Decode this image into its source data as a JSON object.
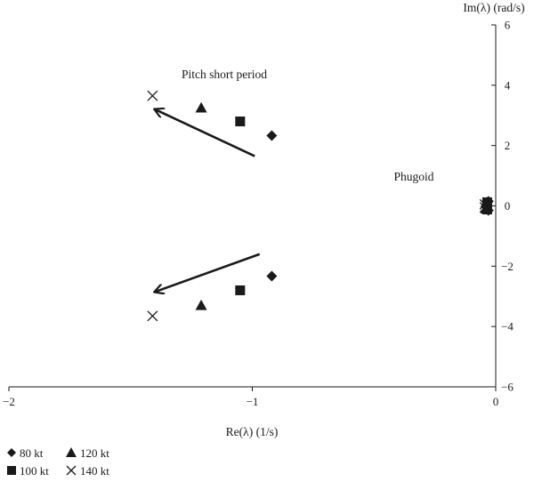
{
  "chart_data": {
    "type": "scatter",
    "xlabel": "Re(λ) (1/s)",
    "ylabel": "Im(λ) (rad/s)",
    "xlim": [
      -2,
      0
    ],
    "ylim": [
      -6,
      6
    ],
    "x_ticks": [
      -2,
      -1,
      0
    ],
    "y_ticks": [
      -6,
      -4,
      -2,
      0,
      2,
      4,
      6
    ],
    "x_tick_labels": [
      "−2",
      "−1",
      "0"
    ],
    "y_tick_labels": [
      "−6",
      "−4",
      "−2",
      "0",
      "2",
      "4",
      "6"
    ],
    "grid": false,
    "legend_placement": "bottom-left",
    "series": [
      {
        "name": "80 kt",
        "marker": "diamond",
        "points": [
          [
            -0.92,
            2.33
          ],
          [
            -0.92,
            -2.33
          ],
          [
            -0.03,
            0.15
          ],
          [
            -0.03,
            -0.15
          ]
        ]
      },
      {
        "name": "100 kt",
        "marker": "square",
        "points": [
          [
            -1.05,
            2.8
          ],
          [
            -1.05,
            -2.8
          ],
          [
            -0.035,
            0.12
          ],
          [
            -0.035,
            -0.12
          ]
        ]
      },
      {
        "name": "120 kt",
        "marker": "triangle",
        "points": [
          [
            -1.21,
            3.25
          ],
          [
            -1.21,
            -3.3
          ],
          [
            -0.04,
            0.1
          ],
          [
            -0.04,
            -0.1
          ]
        ]
      },
      {
        "name": "140 kt",
        "marker": "cross",
        "points": [
          [
            -1.41,
            3.65
          ],
          [
            -1.41,
            -3.65
          ],
          [
            -0.045,
            0.05
          ],
          [
            -0.045,
            -0.05
          ]
        ]
      }
    ],
    "annotations": [
      {
        "text": "Pitch short period",
        "x": -1.4,
        "y": 4.35
      },
      {
        "text": "Phugoid",
        "x": -0.43,
        "y": 0.85
      }
    ],
    "arrows": [
      {
        "from": [
          -0.99,
          1.65
        ],
        "to": [
          -1.4,
          3.2
        ]
      },
      {
        "from": [
          -0.97,
          -1.6
        ],
        "to": [
          -1.4,
          -2.85
        ]
      }
    ]
  }
}
